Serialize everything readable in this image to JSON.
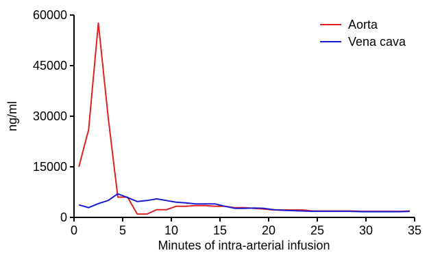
{
  "chart_data": {
    "type": "line",
    "title": "",
    "xlabel": "Minutes of intra-arterial infusion",
    "ylabel": "ng/ml",
    "xlim": [
      0,
      35
    ],
    "ylim": [
      0,
      60000
    ],
    "x_ticks": [
      "0",
      "5",
      "10",
      "15",
      "20",
      "25",
      "30",
      "35"
    ],
    "y_ticks": [
      "0",
      "15000",
      "30000",
      "45000",
      "60000"
    ],
    "grid": false,
    "legend_position": "top-right",
    "series": [
      {
        "name": "Aorta",
        "color": "#e02020",
        "x": [
          0.5,
          1.5,
          2.5,
          3.5,
          4.5,
          5.5,
          6.5,
          7.5,
          8.5,
          9.5,
          10.5,
          11.5,
          12.5,
          13.5,
          14.5,
          15.5,
          16.5,
          17.5,
          18.5,
          19.5,
          20.5,
          21.5,
          22.5,
          23.5,
          24.5,
          25.5,
          26.5,
          27.5,
          28.5,
          29.5,
          30.5,
          31.5,
          32.5,
          33.5,
          34.5
        ],
        "values": [
          15000,
          26000,
          57600,
          30000,
          6000,
          6000,
          1000,
          1000,
          2300,
          2300,
          3300,
          3300,
          3500,
          3500,
          3300,
          3300,
          2900,
          2900,
          2700,
          2500,
          2200,
          2200,
          2200,
          2200,
          1900,
          1900,
          1900,
          1900,
          1900,
          1800,
          1800,
          1800,
          1800,
          1800,
          1900
        ]
      },
      {
        "name": "Vena cava",
        "color": "#1a1ad0",
        "x": [
          0.5,
          1.5,
          2.5,
          3.5,
          4.5,
          5.5,
          6.5,
          7.5,
          8.5,
          9.5,
          10.5,
          11.5,
          12.5,
          13.5,
          14.5,
          15.5,
          16.5,
          17.5,
          18.5,
          19.5,
          20.5,
          21.5,
          22.5,
          23.5,
          24.5,
          25.5,
          26.5,
          27.5,
          28.5,
          29.5,
          30.5,
          31.5,
          32.5,
          33.5,
          34.5
        ],
        "values": [
          3700,
          2900,
          4100,
          5000,
          7000,
          5900,
          4700,
          5000,
          5500,
          5000,
          4500,
          4300,
          4000,
          4000,
          4000,
          3300,
          2700,
          2700,
          2800,
          2700,
          2300,
          2100,
          2000,
          1900,
          1800,
          1800,
          1800,
          1800,
          1800,
          1700,
          1700,
          1700,
          1700,
          1700,
          1800
        ]
      }
    ]
  }
}
